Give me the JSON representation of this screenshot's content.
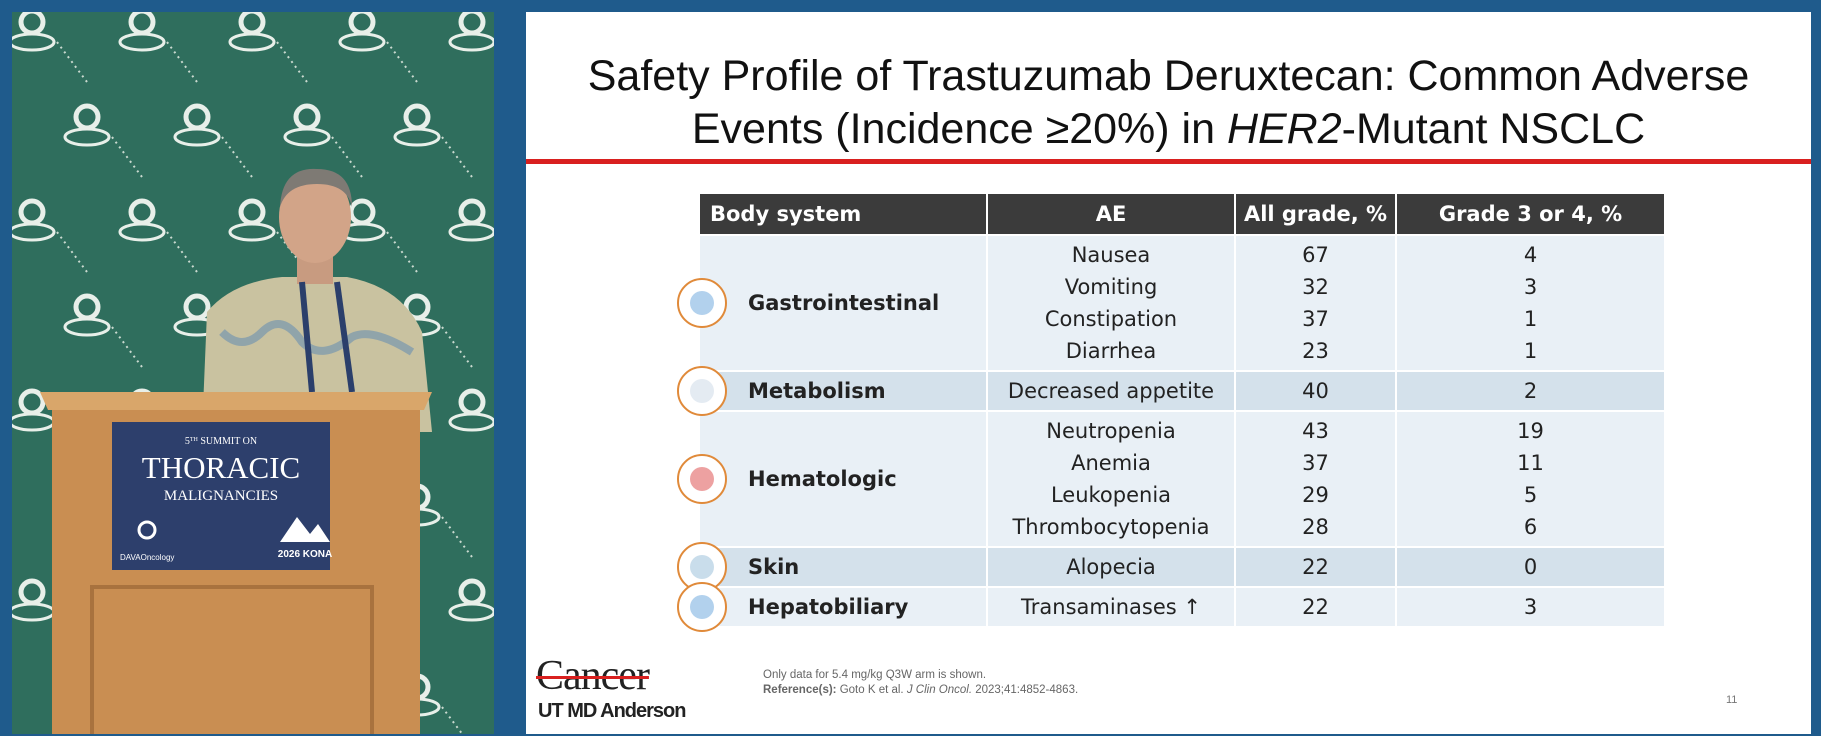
{
  "slide": {
    "title_parts": [
      "Safety Profile of Trastuzumab Deruxtecan: Common Adverse Events (Incidence ≥20%) in ",
      "HER2",
      "-Mutant NSCLC"
    ],
    "table": {
      "headers": [
        "Body system",
        "AE",
        "All grade, %",
        "Grade 3 or 4, %"
      ],
      "rows": [
        {
          "body_system": "Gastrointestinal",
          "events": [
            {
              "ae": "Nausea",
              "all_grade": "67",
              "grade_3_4": "4"
            },
            {
              "ae": "Vomiting",
              "all_grade": "32",
              "grade_3_4": "3"
            },
            {
              "ae": "Constipation",
              "all_grade": "37",
              "grade_3_4": "1"
            },
            {
              "ae": "Diarrhea",
              "all_grade": "23",
              "grade_3_4": "1"
            }
          ]
        },
        {
          "body_system": "Metabolism",
          "events": [
            {
              "ae": "Decreased appetite",
              "all_grade": "40",
              "grade_3_4": "2"
            }
          ]
        },
        {
          "body_system": "Hematologic",
          "events": [
            {
              "ae": "Neutropenia",
              "all_grade": "43",
              "grade_3_4": "19"
            },
            {
              "ae": "Anemia",
              "all_grade": "37",
              "grade_3_4": "11"
            },
            {
              "ae": "Leukopenia",
              "all_grade": "29",
              "grade_3_4": "5"
            },
            {
              "ae": "Thrombocytopenia",
              "all_grade": "28",
              "grade_3_4": "6"
            }
          ]
        },
        {
          "body_system": "Skin",
          "events": [
            {
              "ae": "Alopecia",
              "all_grade": "22",
              "grade_3_4": "0"
            }
          ]
        },
        {
          "body_system": "Hepatobiliary",
          "events": [
            {
              "ae": "Transaminases ↑",
              "all_grade": "22",
              "grade_3_4": "3"
            }
          ]
        }
      ]
    },
    "footnote": "Only data for 5.4 mg/kg Q3W arm is shown.",
    "reference": {
      "label": "Reference(s):",
      "authors": "Goto K et al. ",
      "journal": "J Clin Oncol.",
      "citation": " 2023;41:4852-4863."
    },
    "page_number": "11",
    "logo": {
      "top": "Cancer",
      "bottom": "UT MD Anderson"
    }
  },
  "podium": {
    "ordinal": "5",
    "suffix": "TH",
    "line1": " SUMMIT ON",
    "line2": "THORACIC",
    "line3": "MALIGNANCIES",
    "brand": "DAVAOncology",
    "event": "2026 KONA"
  }
}
